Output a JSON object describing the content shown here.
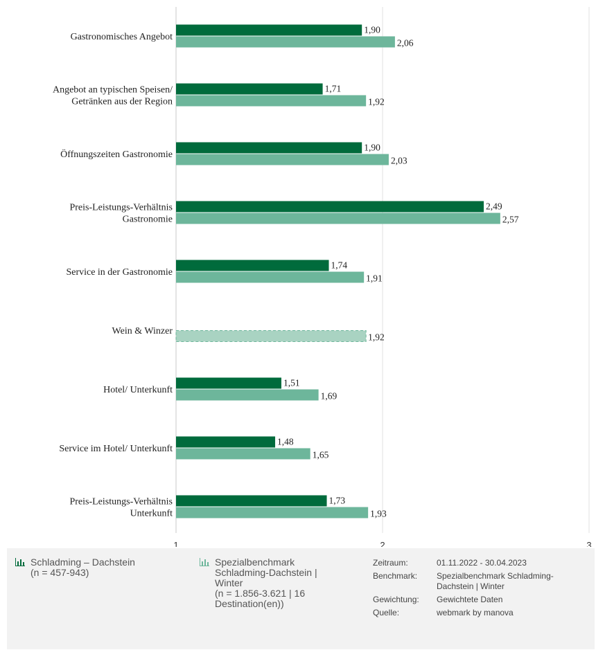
{
  "chart_data": {
    "type": "bar",
    "orientation": "horizontal",
    "categories": [
      [
        "Gastronomisches Angebot"
      ],
      [
        "Angebot an typischen Speisen/",
        "Getränken aus der Region"
      ],
      [
        "Öffnungszeiten Gastronomie"
      ],
      [
        "Preis-Leistungs-Verhältnis",
        "Gastronomie"
      ],
      [
        "Service in der Gastronomie"
      ],
      [
        "Wein & Winzer"
      ],
      [
        "Hotel/ Unterkunft"
      ],
      [
        "Service im Hotel/ Unterkunft"
      ],
      [
        "Preis-Leistungs-Verhältnis",
        "Unterkunft"
      ]
    ],
    "series": [
      {
        "name": "Schladming – Dachstein",
        "color": "#006b3c",
        "values": [
          1.9,
          1.71,
          1.9,
          2.49,
          1.74,
          null,
          1.51,
          1.48,
          1.73
        ],
        "labels": [
          "1,90",
          "1,71",
          "1,90",
          "2,49",
          "1,74",
          "",
          "1,51",
          "1,48",
          "1,73"
        ]
      },
      {
        "name": "Spezialbenchmark Schladming-Dachstein | Winter",
        "color": "#6db69b",
        "values": [
          2.06,
          1.92,
          2.03,
          2.57,
          1.91,
          1.92,
          1.69,
          1.65,
          1.93
        ],
        "labels": [
          "2,06",
          "1,92",
          "2,03",
          "2,57",
          "1,91",
          "1,92",
          "1,69",
          "1,65",
          "1,93"
        ],
        "dashed": [
          false,
          false,
          false,
          false,
          false,
          true,
          false,
          false,
          false
        ]
      }
    ],
    "xlim": [
      1,
      3
    ],
    "xticks": [
      1,
      2,
      3
    ],
    "xtick_labels": [
      "1",
      "2",
      "3"
    ],
    "grid": true,
    "legend_position": "bottom"
  },
  "legend": {
    "item1": {
      "icon": "bar-chart-icon",
      "color": "#006b3c",
      "lines": [
        "Schladming – Dachstein",
        "(n = 457-943)"
      ]
    },
    "item2": {
      "icon": "bar-chart-icon",
      "color": "#6db69b",
      "lines": [
        "Spezialbenchmark",
        "Schladming-Dachstein |",
        "Winter",
        "(n = 1.856-3.621 | 16",
        "Destination(en))"
      ]
    }
  },
  "meta": {
    "zeitraum_label": "Zeitraum:",
    "zeitraum_value": "01.11.2022 - 30.04.2023",
    "benchmark_label": "Benchmark:",
    "benchmark_value": "Spezialbenchmark Schladming-Dachstein | Winter",
    "gewichtung_label": "Gewichtung:",
    "gewichtung_value": "Gewichtete Daten",
    "quelle_label": "Quelle:",
    "quelle_value": "webmark by manova"
  }
}
